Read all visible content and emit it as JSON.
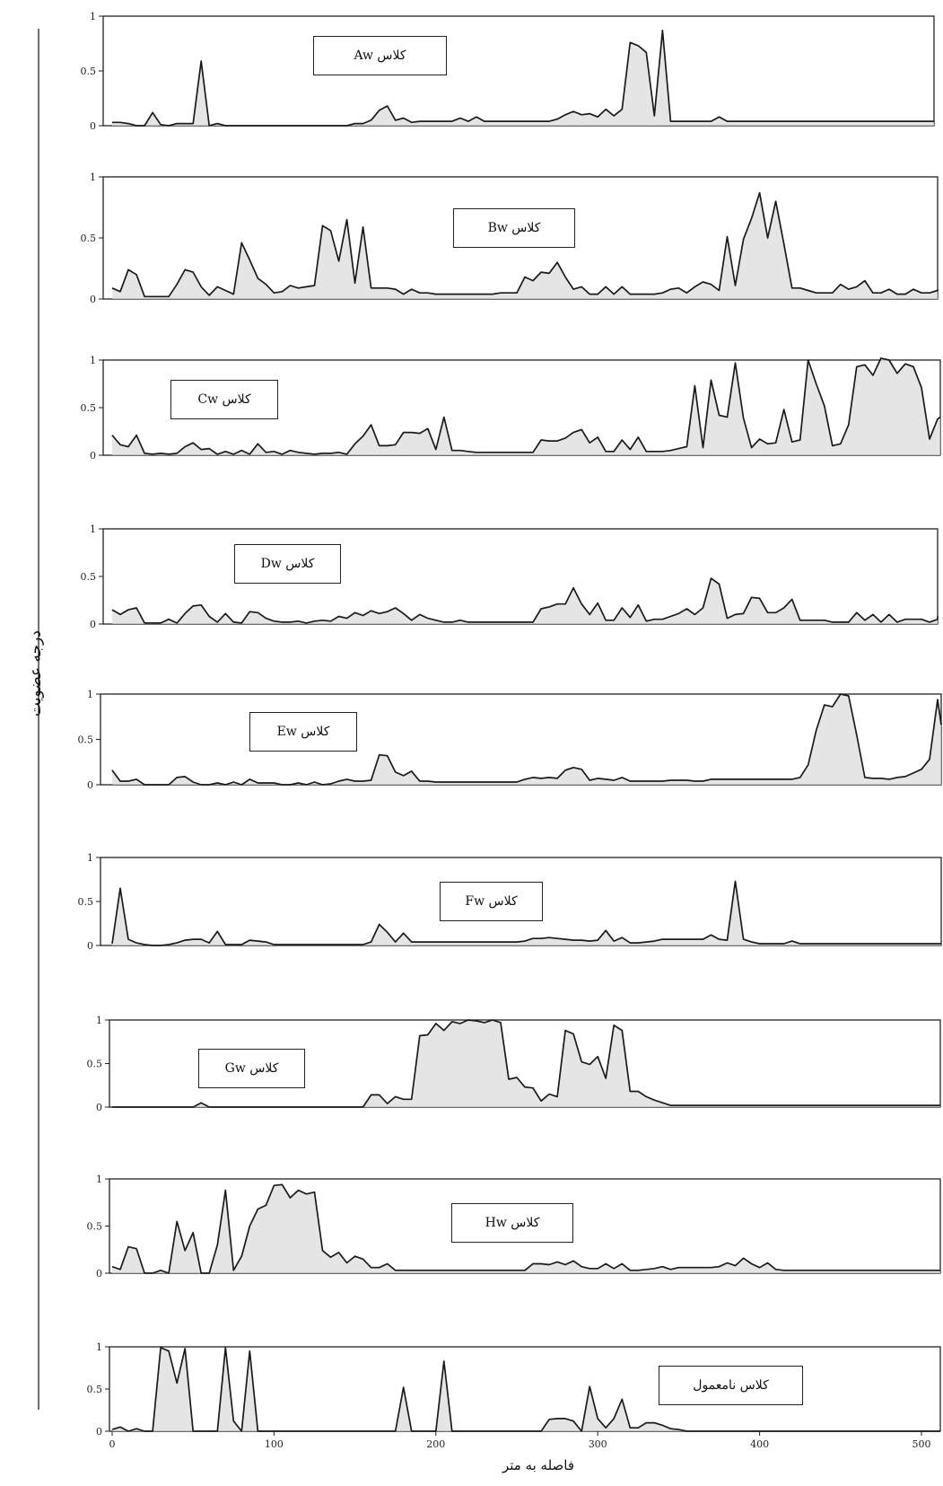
{
  "y_axis_title": "درجه عضویت",
  "x_axis_title": "فاصله به متر",
  "colors": {
    "line": "#1a1a1a",
    "fill": "#dcdcdc",
    "frame": "#222222"
  },
  "chart_data": {
    "type": "line",
    "x": [
      0,
      5,
      10,
      15,
      20,
      25,
      30,
      35,
      40,
      45,
      50,
      55,
      60,
      65,
      70,
      75,
      80,
      85,
      90,
      95,
      100,
      105,
      110,
      115,
      120,
      125,
      130,
      135,
      140,
      145,
      150,
      155,
      160,
      165,
      170,
      175,
      180,
      185,
      190,
      195,
      200,
      205,
      210,
      215,
      220,
      225,
      230,
      235,
      240,
      245,
      250,
      255,
      260,
      265,
      270,
      275,
      280,
      285,
      290,
      295,
      300,
      305,
      310,
      315,
      320,
      325,
      330,
      335,
      340,
      345,
      350,
      355,
      360,
      365,
      370,
      375,
      380,
      385,
      390,
      395,
      400,
      405,
      410,
      415,
      420,
      425,
      430,
      435,
      440,
      445,
      450,
      455,
      460,
      465,
      470,
      475,
      480,
      485,
      490,
      495,
      500,
      505,
      510,
      515
    ],
    "xticks": [
      "0",
      "100",
      "200",
      "300",
      "400",
      "500"
    ],
    "yticks": [
      "0",
      "0.5",
      "1"
    ],
    "ylim": [
      0,
      1
    ],
    "series": [
      {
        "name": "کلاس Aw",
        "values": [
          0.03,
          0.03,
          0.02,
          0.0,
          0.0,
          0.12,
          0.01,
          0.0,
          0.02,
          0.02,
          0.02,
          0.59,
          0.0,
          0.02,
          0.0,
          0.0,
          0.0,
          0.0,
          0.0,
          0.0,
          0.0,
          0.0,
          0.0,
          0.0,
          0.0,
          0.0,
          0.0,
          0.0,
          0.0,
          0.0,
          0.02,
          0.02,
          0.05,
          0.14,
          0.18,
          0.05,
          0.07,
          0.03,
          0.04,
          0.04,
          0.04,
          0.04,
          0.04,
          0.07,
          0.04,
          0.08,
          0.04,
          0.04,
          0.04,
          0.04,
          0.04,
          0.04,
          0.04,
          0.04,
          0.04,
          0.06,
          0.1,
          0.13,
          0.1,
          0.11,
          0.08,
          0.15,
          0.09,
          0.15,
          0.76,
          0.73,
          0.67,
          0.09,
          0.87,
          0.04,
          0.04,
          0.04,
          0.04,
          0.04,
          0.04,
          0.08,
          0.04,
          0.04,
          0.04,
          0.04,
          0.04,
          0.04,
          0.04,
          0.04,
          0.04,
          0.04,
          0.04,
          0.04,
          0.04,
          0.04,
          0.04,
          0.04,
          0.04,
          0.04,
          0.04,
          0.04,
          0.04,
          0.04,
          0.04,
          0.04,
          0.04,
          0.04,
          0.04,
          0.04
        ]
      },
      {
        "name": "کلاس Bw",
        "values": [
          0.09,
          0.06,
          0.24,
          0.2,
          0.02,
          0.02,
          0.02,
          0.02,
          0.12,
          0.24,
          0.22,
          0.1,
          0.03,
          0.1,
          0.07,
          0.04,
          0.46,
          0.32,
          0.17,
          0.12,
          0.05,
          0.06,
          0.11,
          0.09,
          0.1,
          0.11,
          0.6,
          0.56,
          0.31,
          0.65,
          0.13,
          0.59,
          0.09,
          0.09,
          0.09,
          0.08,
          0.04,
          0.08,
          0.05,
          0.05,
          0.04,
          0.04,
          0.04,
          0.04,
          0.04,
          0.04,
          0.04,
          0.04,
          0.05,
          0.05,
          0.05,
          0.18,
          0.15,
          0.22,
          0.21,
          0.3,
          0.18,
          0.08,
          0.1,
          0.04,
          0.04,
          0.1,
          0.04,
          0.1,
          0.04,
          0.04,
          0.04,
          0.04,
          0.05,
          0.08,
          0.09,
          0.05,
          0.1,
          0.14,
          0.12,
          0.07,
          0.51,
          0.11,
          0.49,
          0.66,
          0.87,
          0.5,
          0.8,
          0.45,
          0.09,
          0.09,
          0.07,
          0.05,
          0.05,
          0.05,
          0.12,
          0.08,
          0.1,
          0.15,
          0.05,
          0.05,
          0.08,
          0.04,
          0.04,
          0.08,
          0.05,
          0.05,
          0.07,
          0.08
        ]
      },
      {
        "name": "کلاس Cw",
        "values": [
          0.21,
          0.11,
          0.09,
          0.21,
          0.02,
          0.01,
          0.02,
          0.01,
          0.02,
          0.09,
          0.13,
          0.06,
          0.07,
          0.01,
          0.04,
          0.01,
          0.05,
          0.01,
          0.12,
          0.03,
          0.04,
          0.01,
          0.05,
          0.03,
          0.02,
          0.01,
          0.02,
          0.02,
          0.03,
          0.01,
          0.12,
          0.2,
          0.32,
          0.1,
          0.1,
          0.11,
          0.24,
          0.24,
          0.23,
          0.28,
          0.06,
          0.4,
          0.05,
          0.05,
          0.04,
          0.03,
          0.03,
          0.03,
          0.03,
          0.03,
          0.03,
          0.03,
          0.03,
          0.16,
          0.15,
          0.15,
          0.18,
          0.24,
          0.27,
          0.13,
          0.19,
          0.04,
          0.04,
          0.16,
          0.06,
          0.19,
          0.04,
          0.04,
          0.04,
          0.05,
          0.07,
          0.09,
          0.73,
          0.08,
          0.79,
          0.42,
          0.4,
          0.97,
          0.39,
          0.08,
          0.17,
          0.12,
          0.13,
          0.48,
          0.14,
          0.16,
          1.0,
          0.75,
          0.52,
          0.1,
          0.12,
          0.32,
          0.93,
          0.95,
          0.84,
          1.02,
          1.0,
          0.86,
          0.96,
          0.93,
          0.71,
          0.17,
          0.38,
          0.4
        ]
      },
      {
        "name": "کلاس Dw",
        "values": [
          0.15,
          0.1,
          0.15,
          0.17,
          0.01,
          0.01,
          0.01,
          0.05,
          0.01,
          0.11,
          0.19,
          0.2,
          0.08,
          0.02,
          0.11,
          0.02,
          0.01,
          0.13,
          0.12,
          0.06,
          0.03,
          0.02,
          0.02,
          0.03,
          0.01,
          0.03,
          0.04,
          0.03,
          0.08,
          0.06,
          0.12,
          0.09,
          0.14,
          0.11,
          0.13,
          0.17,
          0.11,
          0.04,
          0.1,
          0.06,
          0.04,
          0.02,
          0.02,
          0.04,
          0.02,
          0.02,
          0.02,
          0.02,
          0.02,
          0.02,
          0.02,
          0.02,
          0.02,
          0.16,
          0.18,
          0.21,
          0.21,
          0.38,
          0.21,
          0.1,
          0.22,
          0.04,
          0.04,
          0.17,
          0.07,
          0.2,
          0.03,
          0.05,
          0.05,
          0.08,
          0.11,
          0.16,
          0.1,
          0.17,
          0.48,
          0.42,
          0.06,
          0.1,
          0.11,
          0.28,
          0.27,
          0.12,
          0.12,
          0.17,
          0.26,
          0.04,
          0.04,
          0.04,
          0.04,
          0.02,
          0.02,
          0.02,
          0.12,
          0.04,
          0.1,
          0.02,
          0.1,
          0.02,
          0.05,
          0.05,
          0.05,
          0.02,
          0.05,
          0.08
        ]
      },
      {
        "name": "کلاس Ew",
        "values": [
          0.16,
          0.04,
          0.04,
          0.06,
          0.0,
          0.0,
          0.0,
          0.0,
          0.08,
          0.09,
          0.03,
          0.0,
          0.0,
          0.02,
          0.0,
          0.03,
          0.0,
          0.06,
          0.02,
          0.02,
          0.02,
          0.0,
          0.0,
          0.02,
          0.0,
          0.03,
          0.0,
          0.01,
          0.04,
          0.06,
          0.04,
          0.04,
          0.05,
          0.33,
          0.32,
          0.14,
          0.1,
          0.15,
          0.04,
          0.04,
          0.03,
          0.03,
          0.03,
          0.03,
          0.03,
          0.03,
          0.03,
          0.03,
          0.03,
          0.03,
          0.03,
          0.06,
          0.08,
          0.07,
          0.08,
          0.07,
          0.16,
          0.19,
          0.17,
          0.05,
          0.07,
          0.06,
          0.05,
          0.08,
          0.04,
          0.04,
          0.04,
          0.04,
          0.04,
          0.05,
          0.05,
          0.05,
          0.04,
          0.04,
          0.06,
          0.06,
          0.06,
          0.06,
          0.06,
          0.06,
          0.06,
          0.06,
          0.06,
          0.06,
          0.06,
          0.08,
          0.22,
          0.6,
          0.88,
          0.86,
          1.0,
          0.98,
          0.55,
          0.08,
          0.07,
          0.07,
          0.06,
          0.08,
          0.09,
          0.13,
          0.17,
          0.28,
          0.94,
          0.66
        ]
      },
      {
        "name": "کلاس Fw",
        "values": [
          0.02,
          0.65,
          0.07,
          0.03,
          0.01,
          0.0,
          0.0,
          0.01,
          0.03,
          0.06,
          0.07,
          0.07,
          0.03,
          0.16,
          0.01,
          0.01,
          0.01,
          0.06,
          0.05,
          0.04,
          0.01,
          0.01,
          0.01,
          0.01,
          0.01,
          0.01,
          0.01,
          0.01,
          0.01,
          0.01,
          0.01,
          0.01,
          0.04,
          0.24,
          0.15,
          0.04,
          0.14,
          0.04,
          0.04,
          0.04,
          0.04,
          0.04,
          0.04,
          0.04,
          0.04,
          0.04,
          0.04,
          0.04,
          0.04,
          0.04,
          0.04,
          0.05,
          0.08,
          0.08,
          0.09,
          0.08,
          0.07,
          0.06,
          0.06,
          0.05,
          0.06,
          0.17,
          0.05,
          0.09,
          0.03,
          0.03,
          0.04,
          0.05,
          0.07,
          0.07,
          0.07,
          0.07,
          0.07,
          0.07,
          0.12,
          0.07,
          0.06,
          0.73,
          0.07,
          0.04,
          0.02,
          0.02,
          0.02,
          0.02,
          0.05,
          0.02,
          0.02,
          0.02,
          0.02,
          0.02,
          0.02,
          0.02,
          0.02,
          0.02,
          0.02,
          0.02,
          0.02,
          0.02,
          0.02,
          0.02,
          0.02,
          0.02,
          0.02,
          0.02
        ]
      },
      {
        "name": "کلاس Gw",
        "values": [
          0.0,
          0.0,
          0.0,
          0.0,
          0.0,
          0.0,
          0.0,
          0.0,
          0.0,
          0.0,
          0.0,
          0.05,
          0.0,
          0.0,
          0.0,
          0.0,
          0.0,
          0.0,
          0.0,
          0.0,
          0.0,
          0.0,
          0.0,
          0.0,
          0.0,
          0.0,
          0.0,
          0.0,
          0.0,
          0.0,
          0.0,
          0.0,
          0.14,
          0.14,
          0.04,
          0.12,
          0.09,
          0.09,
          0.82,
          0.83,
          0.96,
          0.88,
          0.98,
          0.96,
          1.0,
          0.99,
          0.97,
          1.0,
          0.97,
          0.32,
          0.34,
          0.23,
          0.22,
          0.07,
          0.15,
          0.12,
          0.88,
          0.84,
          0.52,
          0.49,
          0.58,
          0.33,
          0.94,
          0.88,
          0.18,
          0.18,
          0.12,
          0.08,
          0.05,
          0.02,
          0.02,
          0.02,
          0.02,
          0.02,
          0.02,
          0.02,
          0.02,
          0.02,
          0.02,
          0.02,
          0.02,
          0.02,
          0.02,
          0.02,
          0.02,
          0.02,
          0.02,
          0.02,
          0.02,
          0.02,
          0.02,
          0.02,
          0.02,
          0.02,
          0.02,
          0.02,
          0.02,
          0.02,
          0.02,
          0.02,
          0.02,
          0.02,
          0.02,
          0.02
        ]
      },
      {
        "name": "کلاس Hw",
        "values": [
          0.07,
          0.04,
          0.28,
          0.26,
          0.0,
          0.0,
          0.03,
          0.0,
          0.55,
          0.24,
          0.43,
          0.0,
          0.0,
          0.3,
          0.88,
          0.03,
          0.18,
          0.5,
          0.68,
          0.72,
          0.93,
          0.94,
          0.8,
          0.88,
          0.84,
          0.86,
          0.24,
          0.17,
          0.22,
          0.11,
          0.18,
          0.15,
          0.06,
          0.06,
          0.1,
          0.03,
          0.03,
          0.03,
          0.03,
          0.03,
          0.03,
          0.03,
          0.03,
          0.03,
          0.03,
          0.03,
          0.03,
          0.03,
          0.03,
          0.03,
          0.03,
          0.03,
          0.1,
          0.1,
          0.09,
          0.12,
          0.09,
          0.13,
          0.07,
          0.05,
          0.05,
          0.1,
          0.05,
          0.1,
          0.03,
          0.03,
          0.04,
          0.05,
          0.07,
          0.04,
          0.06,
          0.06,
          0.06,
          0.06,
          0.06,
          0.07,
          0.11,
          0.08,
          0.16,
          0.1,
          0.06,
          0.11,
          0.04,
          0.03,
          0.03,
          0.03,
          0.03,
          0.03,
          0.03,
          0.03,
          0.03,
          0.03,
          0.03,
          0.03,
          0.03,
          0.03,
          0.03,
          0.03,
          0.03,
          0.03,
          0.03,
          0.03,
          0.03,
          0.03
        ]
      },
      {
        "name": "کلاس نامعمول",
        "values": [
          0.02,
          0.05,
          0.0,
          0.03,
          0.0,
          0.0,
          0.99,
          0.95,
          0.57,
          0.98,
          0.0,
          0.0,
          0.0,
          0.0,
          0.99,
          0.12,
          0.0,
          0.95,
          0.0,
          0.0,
          0.0,
          0.0,
          0.0,
          0.0,
          0.0,
          0.0,
          0.0,
          0.0,
          0.0,
          0.0,
          0.0,
          0.0,
          0.0,
          0.0,
          0.0,
          0.0,
          0.52,
          0.0,
          0.0,
          0.0,
          0.0,
          0.83,
          0.0,
          0.0,
          0.0,
          0.0,
          0.0,
          0.0,
          0.0,
          0.0,
          0.0,
          0.0,
          0.0,
          0.0,
          0.14,
          0.15,
          0.15,
          0.12,
          0.0,
          0.53,
          0.15,
          0.04,
          0.15,
          0.38,
          0.04,
          0.04,
          0.1,
          0.1,
          0.07,
          0.03,
          0.02,
          0.0,
          0.0,
          0.0,
          0.0,
          0.0,
          0.0,
          0.0,
          0.0,
          0.0,
          0.0,
          0.0,
          0.0,
          0.0,
          0.0,
          0.0,
          0.0,
          0.0,
          0.0,
          0.0,
          0.0,
          0.0,
          0.0,
          0.0,
          0.0,
          0.0,
          0.0,
          0.0,
          0.0,
          0.0,
          0.0,
          0.0,
          0.0,
          0.0
        ]
      }
    ]
  }
}
